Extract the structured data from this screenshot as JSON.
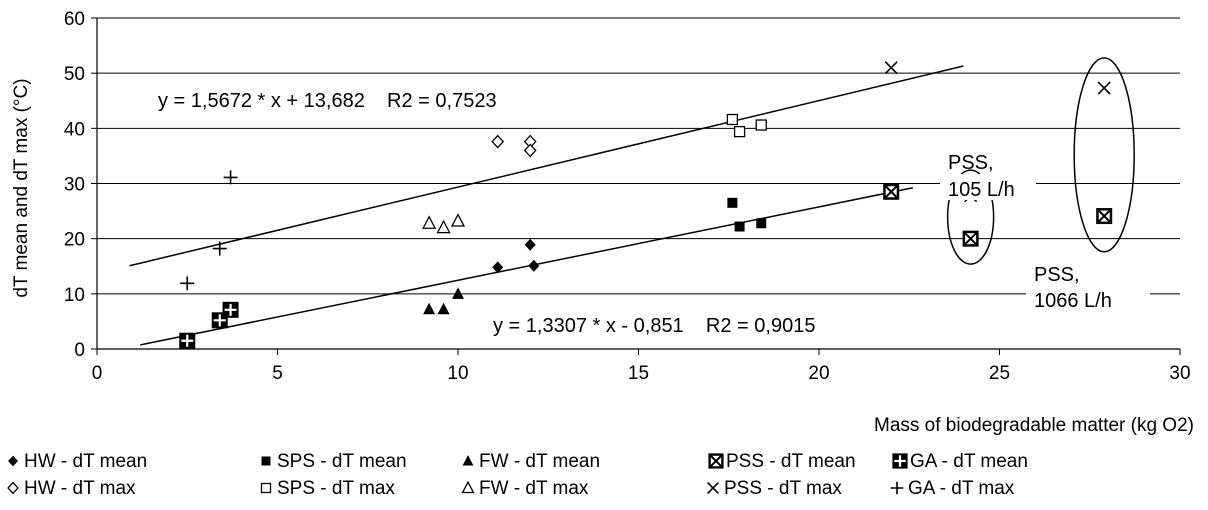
{
  "chart_data": {
    "type": "scatter",
    "xlabel": "Mass of biodegradable matter (kg O2)",
    "ylabel": "dT mean and dT max (°C)",
    "xlim": [
      0,
      30
    ],
    "ylim": [
      0,
      60
    ],
    "xticks": [
      "0",
      "5",
      "10",
      "15",
      "20",
      "25",
      "30"
    ],
    "yticks": [
      "0",
      "10",
      "20",
      "30",
      "40",
      "50",
      "60"
    ],
    "grid": "horizontal",
    "legend_position": "bottom",
    "series": [
      {
        "name": "HW - dT mean",
        "marker": "diamond-filled",
        "points": [
          [
            11.1,
            14.8
          ],
          [
            12.0,
            18.9
          ],
          [
            12.1,
            15.1
          ]
        ]
      },
      {
        "name": "SPS - dT mean",
        "marker": "square-filled",
        "points": [
          [
            17.6,
            26.5
          ],
          [
            17.8,
            22.2
          ],
          [
            18.4,
            22.8
          ]
        ]
      },
      {
        "name": "FW - dT mean",
        "marker": "triangle-filled",
        "points": [
          [
            9.2,
            7.2
          ],
          [
            9.6,
            7.2
          ],
          [
            10.0,
            10.0
          ]
        ]
      },
      {
        "name": "PSS - dT mean",
        "marker": "square-x",
        "points": [
          [
            22.0,
            28.5
          ],
          [
            24.2,
            20.0
          ],
          [
            27.9,
            24.1
          ]
        ]
      },
      {
        "name": "GA - dT mean",
        "marker": "square-plus",
        "points": [
          [
            2.5,
            1.5
          ],
          [
            3.4,
            5.2
          ],
          [
            3.7,
            7.1
          ]
        ]
      },
      {
        "name": "HW - dT max",
        "marker": "diamond-open",
        "points": [
          [
            11.1,
            37.6
          ],
          [
            12.0,
            37.6
          ],
          [
            12.0,
            36.0
          ]
        ]
      },
      {
        "name": "SPS - dT max",
        "marker": "square-open",
        "points": [
          [
            17.6,
            41.6
          ],
          [
            17.8,
            39.4
          ],
          [
            18.4,
            40.6
          ]
        ]
      },
      {
        "name": "FW - dT max",
        "marker": "triangle-open",
        "points": [
          [
            9.2,
            22.8
          ],
          [
            9.6,
            22.0
          ],
          [
            10.0,
            23.2
          ]
        ]
      },
      {
        "name": "PSS - dT max",
        "marker": "x",
        "points": [
          [
            22.0,
            51.0
          ],
          [
            24.2,
            27.8
          ],
          [
            27.9,
            47.3
          ]
        ]
      },
      {
        "name": "GA - dT max",
        "marker": "plus",
        "points": [
          [
            2.5,
            11.9
          ],
          [
            3.4,
            18.2
          ],
          [
            3.7,
            31.1
          ]
        ]
      }
    ],
    "trendlines": [
      {
        "name": "dT max fit",
        "slope": 1.5672,
        "intercept": 13.682,
        "x_range": [
          0.9,
          24.0
        ]
      },
      {
        "name": "dT mean fit",
        "slope": 1.3307,
        "intercept": -0.851,
        "x_range": [
          1.2,
          22.6
        ]
      }
    ],
    "annotations": {
      "eq_max": "y = 1,5672 * x + 13,682    R2 = 0,7523",
      "eq_mean": "y = 1,3307 * x - 0,851    R2 = 0,9015",
      "pss_105_line1": "PSS,",
      "pss_105_line2": "105 L/h",
      "pss_1066_line1": "PSS,",
      "pss_1066_line2": "1066 L/h"
    }
  }
}
